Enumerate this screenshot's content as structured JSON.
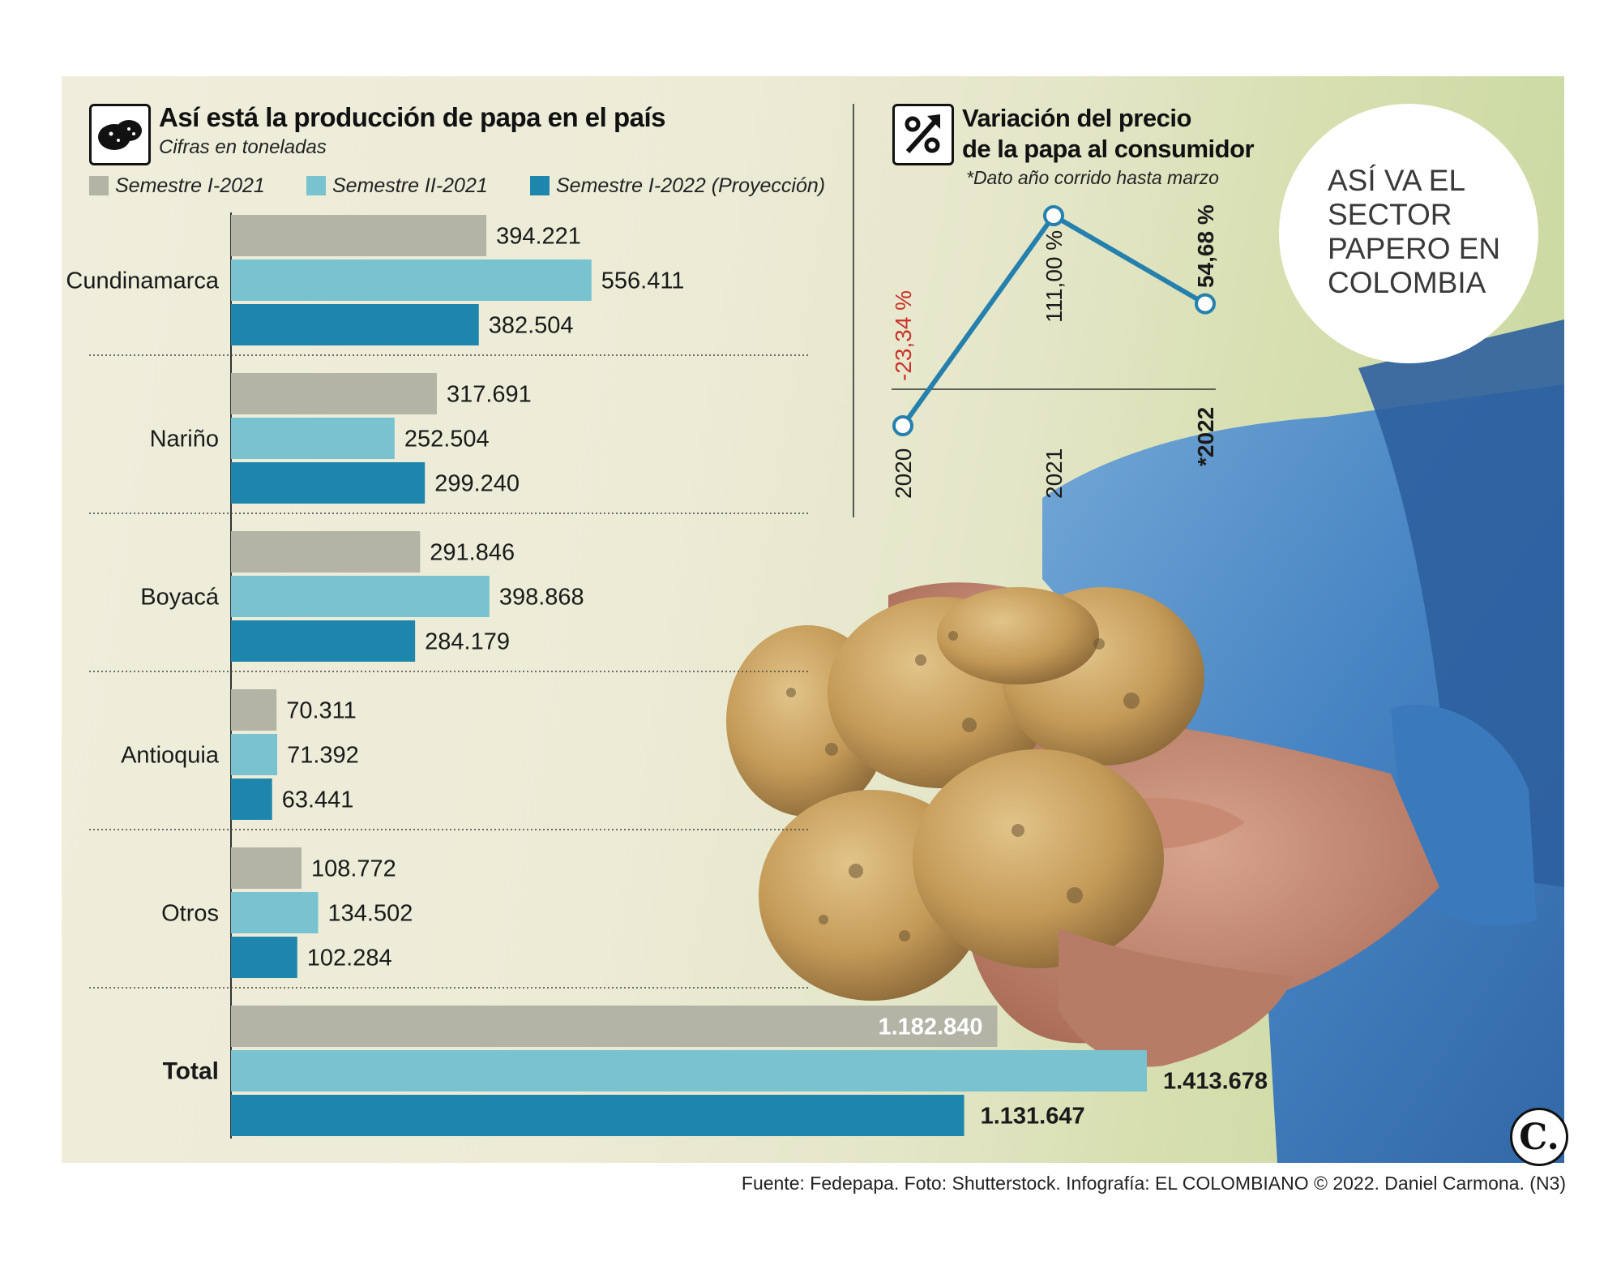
{
  "title": "Así está la producción de papa en el país",
  "subtitle": "Cifras en toneladas",
  "legend": [
    {
      "label": "Semestre I-2021",
      "color": "#b3b3a6"
    },
    {
      "label": "Semestre II-2021",
      "color": "#79c2cf"
    },
    {
      "label": "Semestre I-2022 (Proyección)",
      "color": "#1e86ad"
    }
  ],
  "price_title_line1": "Variación del precio",
  "price_title_line2": "de la papa al consumidor",
  "price_note": "*Dato año corrido hasta marzo",
  "badge_text": "ASÍ VA EL SECTOR PAPERO EN COLOMBIA",
  "logo_text": "C.",
  "source": "Fuente: Fedepapa. Foto: Shutterstock. Infografía: EL COLOMBIANO © 2022. Daniel Carmona. (N3)",
  "icons": {
    "title_icon": "potato-icon",
    "price_icon": "percent-up-icon"
  },
  "chart_data": [
    {
      "type": "bar",
      "orientation": "horizontal",
      "title": "Así está la producción de papa en el país",
      "subtitle": "Cifras en toneladas",
      "categories": [
        "Cundinamarca",
        "Nariño",
        "Boyacá",
        "Antioquia",
        "Otros",
        "Total"
      ],
      "series": [
        {
          "name": "Semestre I-2021",
          "color": "#b3b3a6",
          "values": [
            394221,
            317691,
            291846,
            70311,
            108772,
            1182840
          ],
          "labels": [
            "394.221",
            "317.691",
            "291.846",
            "70.311",
            "108.772",
            "1.182.840"
          ]
        },
        {
          "name": "Semestre II-2021",
          "color": "#79c2cf",
          "values": [
            556411,
            252504,
            398868,
            71392,
            134502,
            1413678
          ],
          "labels": [
            "556.411",
            "252.504",
            "398.868",
            "71.392",
            "134.502",
            "1.413.678"
          ]
        },
        {
          "name": "Semestre I-2022 (Proyección)",
          "color": "#1e86ad",
          "values": [
            382504,
            299240,
            284179,
            63441,
            102284,
            1131647
          ],
          "labels": [
            "382.504",
            "299.240",
            "284.179",
            "63.441",
            "102.284",
            "1.131.647"
          ]
        }
      ],
      "grid": false,
      "legend_position": "top"
    },
    {
      "type": "line",
      "title": "Variación del precio de la papa al consumidor",
      "note": "*Dato año corrido hasta marzo",
      "x": [
        "2020",
        "2021",
        "*2022"
      ],
      "y": [
        -23.34,
        111.0,
        54.68
      ],
      "labels": [
        "-23,34 %",
        "111,00 %",
        "54,68 %"
      ],
      "color": "#2580ad",
      "negative_label_color": "#c8322b",
      "baseline": 0
    }
  ]
}
